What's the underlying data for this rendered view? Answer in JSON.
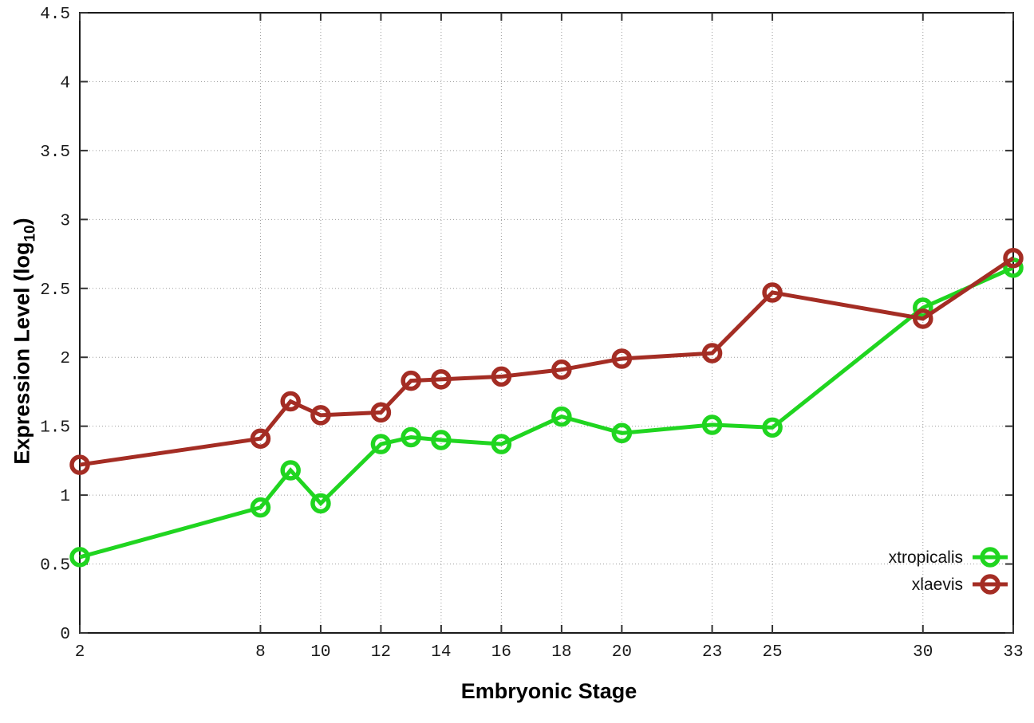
{
  "chart_data": {
    "type": "line",
    "title": "",
    "xlabel": "Embryonic Stage",
    "ylabel": "Expression Level (log10)",
    "ylabel_parts": [
      {
        "text": "Expression Level (log"
      },
      {
        "text": "10",
        "sub": true
      },
      {
        "text": ")"
      }
    ],
    "x": [
      2,
      8,
      9,
      10,
      12,
      13,
      14,
      16,
      18,
      20,
      23,
      25,
      30,
      33
    ],
    "series": [
      {
        "name": "xtropicalis",
        "color": "#20d520",
        "marker": "open-circle",
        "values": [
          0.55,
          0.91,
          1.18,
          0.94,
          1.37,
          1.42,
          1.4,
          1.37,
          1.57,
          1.45,
          1.51,
          1.49,
          2.36,
          2.65
        ]
      },
      {
        "name": "xlaevis",
        "color": "#a42d24",
        "marker": "open-circle",
        "values": [
          1.22,
          1.41,
          1.68,
          1.58,
          1.6,
          1.83,
          1.84,
          1.86,
          1.91,
          1.99,
          2.03,
          2.47,
          2.28,
          2.72
        ]
      }
    ],
    "xlim": [
      2,
      33
    ],
    "ylim": [
      0,
      4.5
    ],
    "xticks": [
      2,
      8,
      10,
      12,
      14,
      16,
      18,
      20,
      23,
      25,
      30,
      33
    ],
    "xtick_labels": [
      "2",
      "8",
      "10",
      "12",
      "14",
      "16",
      "18",
      "20",
      "23",
      "25",
      "30",
      "33"
    ],
    "yticks": [
      0,
      0.5,
      1,
      1.5,
      2,
      2.5,
      3,
      3.5,
      4,
      4.5
    ],
    "ytick_labels": [
      "0",
      "0.5",
      "1",
      "1.5",
      "2",
      "2.5",
      "3",
      "3.5",
      "4",
      "4.5"
    ],
    "grid": true,
    "legend_position": "inside-bottom-right"
  },
  "style": {
    "background": "#ffffff",
    "border_color": "#1a1a1a",
    "grid_color": "#9c9c9c",
    "tick_color": "#333333",
    "tick_label_color": "#1a1a1a",
    "axis_label_color": "#000000"
  }
}
